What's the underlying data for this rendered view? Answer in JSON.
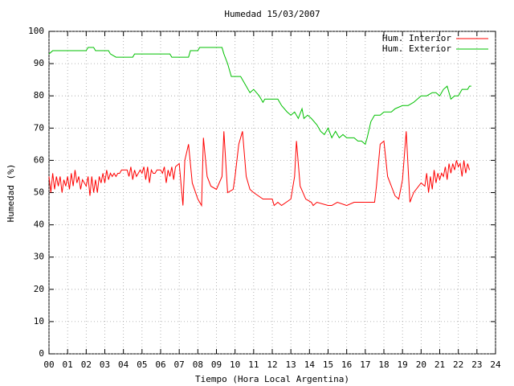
{
  "chart_data": {
    "type": "line",
    "title": "Humedad 15/03/2007",
    "x_label": "Tiempo (Hora Local Argentina)",
    "y_label": "Humedad (%)",
    "xlim": [
      0,
      24
    ],
    "ylim": [
      0,
      100
    ],
    "grid": true,
    "legend": "top-right",
    "xticks": [
      {
        "value": 0,
        "label": "00"
      },
      {
        "value": 1,
        "label": "01"
      },
      {
        "value": 2,
        "label": "02"
      },
      {
        "value": 3,
        "label": "03"
      },
      {
        "value": 4,
        "label": "04"
      },
      {
        "value": 5,
        "label": "05"
      },
      {
        "value": 6,
        "label": "06"
      },
      {
        "value": 7,
        "label": "07"
      },
      {
        "value": 8,
        "label": "08"
      },
      {
        "value": 9,
        "label": "09"
      },
      10,
      11,
      12,
      13,
      14,
      15,
      16,
      17,
      18,
      19,
      20,
      21,
      22,
      23,
      24
    ],
    "yticks": [
      0,
      10,
      20,
      30,
      40,
      50,
      60,
      70,
      80,
      90,
      100
    ],
    "series": [
      {
        "name": "Hum. Interior",
        "color": "#ff0000",
        "x": [
          0.0,
          0.1,
          0.2,
          0.3,
          0.4,
          0.5,
          0.6,
          0.7,
          0.8,
          0.9,
          1.0,
          1.1,
          1.2,
          1.3,
          1.4,
          1.5,
          1.6,
          1.7,
          1.8,
          1.9,
          2.0,
          2.1,
          2.2,
          2.3,
          2.4,
          2.5,
          2.6,
          2.7,
          2.8,
          2.9,
          3.0,
          3.1,
          3.2,
          3.3,
          3.4,
          3.5,
          3.6,
          3.7,
          3.8,
          3.9,
          4.0,
          4.1,
          4.2,
          4.3,
          4.4,
          4.5,
          4.6,
          4.7,
          4.8,
          4.9,
          5.0,
          5.1,
          5.2,
          5.3,
          5.4,
          5.5,
          5.6,
          5.7,
          5.8,
          5.9,
          6.0,
          6.1,
          6.2,
          6.3,
          6.4,
          6.5,
          6.6,
          6.7,
          6.8,
          7.0,
          7.2,
          7.3,
          7.5,
          7.7,
          8.0,
          8.2,
          8.3,
          8.5,
          8.7,
          9.0,
          9.3,
          9.4,
          9.6,
          9.9,
          10.0,
          10.2,
          10.4,
          10.6,
          10.8,
          11.0,
          11.5,
          12.0,
          12.1,
          12.3,
          12.5,
          13.0,
          13.2,
          13.3,
          13.5,
          13.8,
          14.1,
          14.2,
          14.4,
          15.0,
          15.2,
          15.5,
          16.0,
          16.4,
          17.5,
          17.6,
          17.8,
          18.0,
          18.2,
          18.6,
          18.8,
          19.0,
          19.2,
          19.4,
          19.6,
          20.0,
          20.2,
          20.3,
          20.4,
          20.5,
          20.6,
          20.7,
          20.8,
          20.9,
          21.0,
          21.1,
          21.2,
          21.3,
          21.4,
          21.5,
          21.6,
          21.7,
          21.8,
          21.9,
          22.0,
          22.1,
          22.2,
          22.3,
          22.4,
          22.5,
          22.6
        ],
        "values": [
          55,
          50,
          56,
          51,
          55,
          52,
          55,
          50,
          54,
          52,
          55,
          51,
          56,
          52,
          57,
          53,
          55,
          51,
          54,
          53,
          52,
          55,
          49,
          55,
          50,
          54,
          50,
          55,
          53,
          56,
          53,
          57,
          54,
          56,
          55,
          56,
          55,
          56,
          56,
          57,
          57,
          57,
          57,
          55,
          58,
          54,
          57,
          55,
          56,
          57,
          56,
          58,
          54,
          58,
          53,
          57,
          56,
          56,
          57,
          57,
          57,
          56,
          58,
          53,
          57,
          55,
          58,
          54,
          58,
          59,
          46,
          60,
          65,
          53,
          48,
          46,
          67,
          55,
          52,
          51,
          55,
          69,
          50,
          51,
          55,
          65,
          69,
          55,
          51,
          50,
          48,
          48,
          46,
          47,
          46,
          48,
          55,
          66,
          52,
          48,
          47,
          46,
          47,
          46,
          46,
          47,
          46,
          47,
          47,
          52,
          65,
          66,
          55,
          49,
          48,
          54,
          69,
          47,
          50,
          53,
          52,
          56,
          50,
          55,
          51,
          57,
          53,
          56,
          54,
          56,
          55,
          58,
          54,
          59,
          56,
          59,
          57,
          60,
          58,
          59,
          55,
          60,
          56,
          59,
          57
        ]
      },
      {
        "name": "Hum. Exterior",
        "color": "#00c000",
        "x": [
          0,
          0.2,
          2.0,
          2.1,
          2.4,
          2.5,
          3.2,
          3.3,
          3.6,
          4.5,
          4.6,
          6.5,
          6.6,
          7.5,
          7.6,
          8.0,
          8.1,
          9.3,
          9.4,
          9.6,
          9.8,
          10.3,
          10.5,
          10.8,
          11.0,
          11.3,
          11.5,
          11.6,
          12.3,
          12.5,
          12.8,
          13.0,
          13.2,
          13.4,
          13.6,
          13.7,
          13.9,
          14.1,
          14.4,
          14.6,
          14.8,
          15.0,
          15.2,
          15.4,
          15.6,
          15.8,
          16.0,
          16.4,
          16.6,
          16.8,
          17.0,
          17.1,
          17.3,
          17.5,
          17.8,
          18.0,
          18.4,
          18.6,
          19.0,
          19.3,
          19.6,
          19.8,
          20.0,
          20.3,
          20.6,
          20.8,
          21.0,
          21.2,
          21.4,
          21.6,
          21.8,
          22.0,
          22.2,
          22.5,
          22.6,
          22.7
        ],
        "values": [
          93,
          94,
          94,
          95,
          95,
          94,
          94,
          93,
          92,
          92,
          93,
          93,
          92,
          92,
          94,
          94,
          95,
          95,
          93,
          90,
          86,
          86,
          84,
          81,
          82,
          80,
          78,
          79,
          79,
          77,
          75,
          74,
          75,
          73,
          76,
          73,
          74,
          73,
          71,
          69,
          68,
          70,
          67,
          69,
          67,
          68,
          67,
          67,
          66,
          66,
          65,
          67,
          72,
          74,
          74,
          75,
          75,
          76,
          77,
          77,
          78,
          79,
          80,
          80,
          81,
          81,
          80,
          82,
          83,
          79,
          80,
          80,
          82,
          82,
          83,
          83
        ]
      }
    ]
  }
}
